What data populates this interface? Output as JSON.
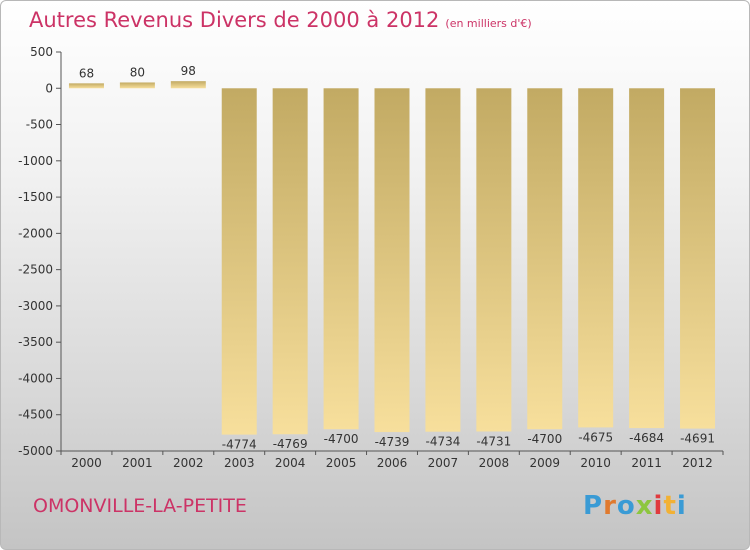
{
  "title": "Autres Revenus Divers de 2000 à 2012",
  "unit_note": "(en milliers d'€)",
  "commune": "OMONVILLE-LA-PETITE",
  "logo": {
    "letters": [
      "P",
      "r",
      "o",
      "x",
      "i",
      "t",
      "i"
    ],
    "colors": [
      "#3a9bd5",
      "#e07a2e",
      "#3a9bd5",
      "#8dc63f",
      "#e03a3e",
      "#f2b134",
      "#3a9bd5"
    ]
  },
  "colors": {
    "title": "#cc3366",
    "bar_light": "#f7df9c",
    "bar_dark": "#c2aa63"
  },
  "chart_data": {
    "type": "bar",
    "title": "Autres Revenus Divers de 2000 à 2012",
    "categories": [
      "2000",
      "2001",
      "2002",
      "2003",
      "2004",
      "2005",
      "2006",
      "2007",
      "2008",
      "2009",
      "2010",
      "2011",
      "2012"
    ],
    "values": [
      68,
      80,
      98,
      -4774,
      -4769,
      -4700,
      -4739,
      -4734,
      -4731,
      -4700,
      -4675,
      -4684,
      -4691
    ],
    "yticks": [
      500,
      0,
      -500,
      -1000,
      -1500,
      -2000,
      -2500,
      -3000,
      -3500,
      -4000,
      -4500,
      -5000
    ],
    "ylim": [
      -5000,
      500
    ],
    "grid": false,
    "legend": "none"
  }
}
